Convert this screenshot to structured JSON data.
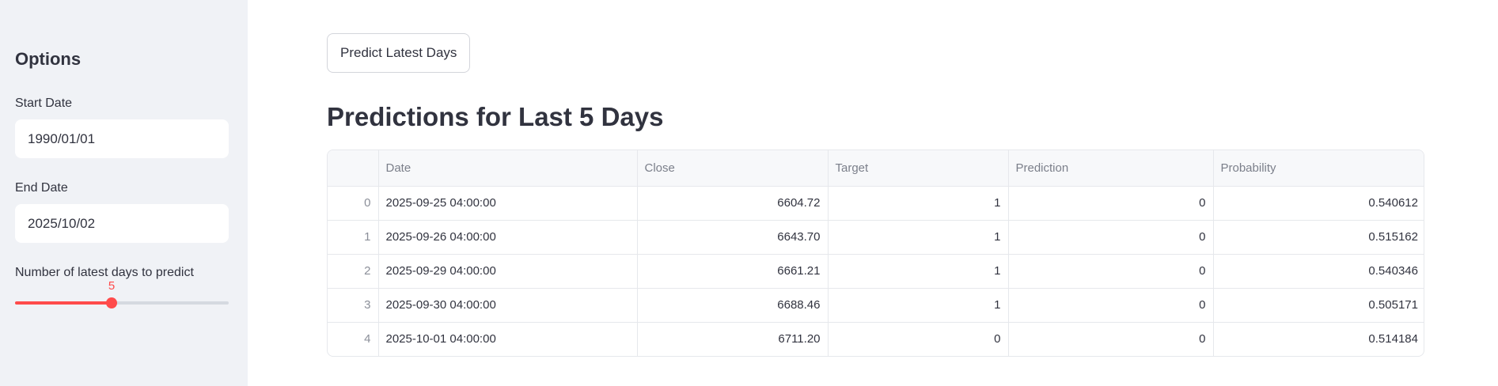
{
  "sidebar": {
    "title": "Options",
    "start_date": {
      "label": "Start Date",
      "value": "1990/01/01"
    },
    "end_date": {
      "label": "End Date",
      "value": "2025/10/02"
    },
    "days_slider": {
      "label": "Number of latest days to predict",
      "value": "5",
      "fraction": 0.45,
      "accent": "#ff4b4b"
    }
  },
  "main": {
    "predict_button": "Predict Latest Days",
    "heading": "Predictions for Last 5 Days",
    "table": {
      "columns": [
        "",
        "Date",
        "Close",
        "Target",
        "Prediction",
        "Probability"
      ],
      "rows": [
        [
          "0",
          "2025-09-25 04:00:00",
          "6604.72",
          "1",
          "0",
          "0.540612"
        ],
        [
          "1",
          "2025-09-26 04:00:00",
          "6643.70",
          "1",
          "0",
          "0.515162"
        ],
        [
          "2",
          "2025-09-29 04:00:00",
          "6661.21",
          "1",
          "0",
          "0.540346"
        ],
        [
          "3",
          "2025-09-30 04:00:00",
          "6688.46",
          "1",
          "0",
          "0.505171"
        ],
        [
          "4",
          "2025-10-01 04:00:00",
          "6711.20",
          "0",
          "0",
          "0.514184"
        ]
      ]
    }
  }
}
